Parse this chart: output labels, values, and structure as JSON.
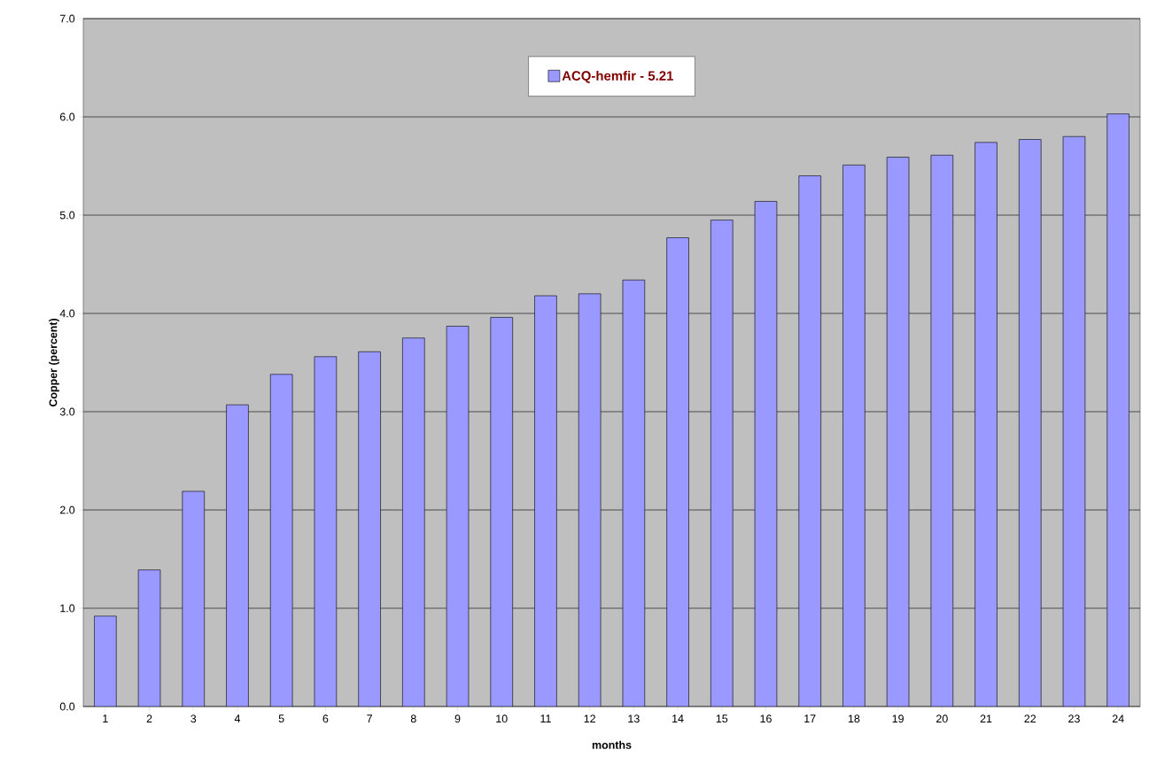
{
  "chart_data": {
    "type": "bar",
    "xlabel": "months",
    "ylabel": "Copper (percent)",
    "categories": [
      "1",
      "2",
      "3",
      "4",
      "5",
      "6",
      "7",
      "8",
      "9",
      "10",
      "11",
      "12",
      "13",
      "14",
      "15",
      "16",
      "17",
      "18",
      "19",
      "20",
      "21",
      "22",
      "23",
      "24"
    ],
    "series": [
      {
        "name": "ACQ-hemfir - 5.21",
        "color": "#9999ff",
        "values": [
          0.92,
          1.39,
          2.19,
          3.07,
          3.38,
          3.56,
          3.61,
          3.75,
          3.87,
          3.96,
          4.18,
          4.2,
          4.34,
          4.77,
          4.95,
          5.14,
          5.4,
          5.51,
          5.59,
          5.61,
          5.74,
          5.77,
          5.8,
          6.03
        ]
      }
    ],
    "ylim": [
      0,
      7
    ],
    "yticks": [
      {
        "value": 0,
        "label": "0.0"
      },
      {
        "value": 1,
        "label": "1.0"
      },
      {
        "value": 2,
        "label": "2.0"
      },
      {
        "value": 3,
        "label": "3.0"
      },
      {
        "value": 4,
        "label": "4.0"
      },
      {
        "value": 5,
        "label": "5.0"
      },
      {
        "value": 6,
        "label": "6.0"
      },
      {
        "value": 7,
        "label": "7.0"
      }
    ],
    "grid": "y",
    "legend": "top"
  }
}
